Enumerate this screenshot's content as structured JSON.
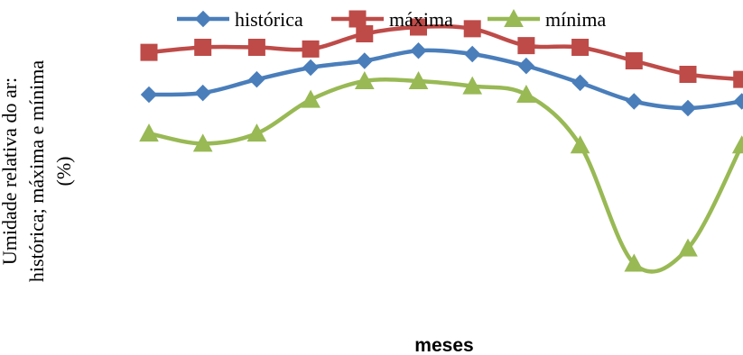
{
  "chart_data": {
    "type": "line",
    "smooth": true,
    "title": "",
    "xlabel": "meses",
    "ylabel_lines": [
      "Umidade relativa do ar:",
      "histórica; máxima e mínima",
      "(%)"
    ],
    "ylim": [
      0,
      100
    ],
    "grid": false,
    "legend_position": "top",
    "x": [
      1,
      2,
      3,
      4,
      5,
      6,
      7,
      8,
      9,
      10,
      11,
      12
    ],
    "series": [
      {
        "name": "histórica",
        "color": "#4a7ebb",
        "marker": "diamond",
        "values": [
          72,
          72.5,
          76.5,
          80,
          82,
          85,
          84,
          80.5,
          75.5,
          70,
          68,
          70
        ]
      },
      {
        "name": "máxima",
        "color": "#be4b48",
        "marker": "square",
        "values": [
          84.5,
          86,
          86,
          85.5,
          90,
          92,
          91.5,
          86.5,
          86,
          82,
          78,
          76.5
        ]
      },
      {
        "name": "mínima",
        "color": "#98b954",
        "marker": "triangle",
        "values": [
          60.5,
          57.5,
          60.5,
          70.5,
          76,
          76,
          74.5,
          72,
          57,
          22,
          26.5,
          57
        ]
      }
    ]
  }
}
